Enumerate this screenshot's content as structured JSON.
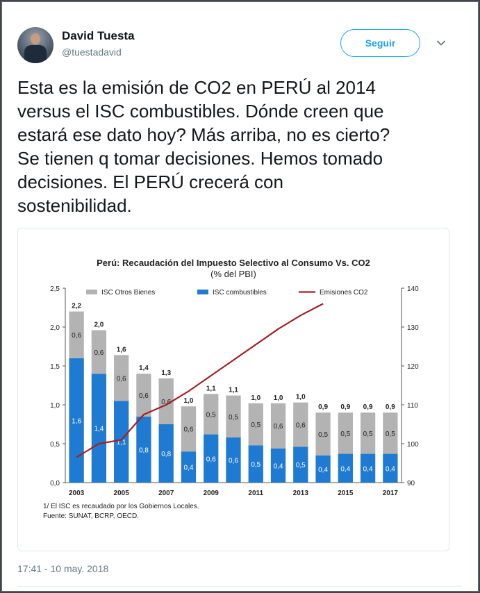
{
  "user": {
    "name": "David Tuesta",
    "handle": "@tuestadavid",
    "follow_label": "Seguir"
  },
  "icons": {
    "avatar": "user-avatar-photo",
    "menu": "chevron-down-icon"
  },
  "tweet": {
    "lines": [
      "Esta es la emisión de CO2 en PERÚ al 2014",
      "versus el ISC combustibles. Dónde creen que",
      "estará ese dato hoy? Más arriba, no es cierto?",
      "Se tienen q tomar decisiones. Hemos tomado",
      "decisiones. El PERÚ crecerá con",
      "sostenibilidad."
    ],
    "timestamp": "17:41 - 10 may. 2018"
  },
  "colors": {
    "accent": "#1da1f2",
    "isc_otros": "#b3b3b3",
    "isc_combustibles": "#1f7bd2",
    "co2_line": "#a31f24"
  },
  "chart_data": {
    "type": "bar",
    "title": "Perú: Recaudación del Impuesto Selectivo al Consumo Vs. CO2",
    "subtitle": "(% del PBI)",
    "categories": [
      "2003",
      "2004",
      "2005",
      "2006",
      "2007",
      "2008",
      "2009",
      "2010",
      "2011",
      "2012",
      "2013",
      "2014",
      "2015",
      "2016",
      "2017"
    ],
    "x_tick_labels": [
      "2003",
      "2005",
      "2007",
      "2009",
      "2011",
      "2013",
      "2015",
      "2017"
    ],
    "stacked": true,
    "series": [
      {
        "name": "ISC combustibles",
        "axis": "left",
        "values": [
          1.6,
          1.4,
          1.05,
          0.85,
          0.75,
          0.4,
          0.62,
          0.58,
          0.48,
          0.44,
          0.46,
          0.35,
          0.37,
          0.37,
          0.37
        ],
        "labels": [
          "1,6",
          "1,4",
          "1,1",
          "0,8",
          "0,8",
          "0,4",
          "0,6",
          "0,6",
          "0,5",
          "0,4",
          "0,5",
          "0,4",
          "0,4",
          "0,4",
          "0,4"
        ]
      },
      {
        "name": "ISC Otros Bienes",
        "axis": "left",
        "values": [
          0.6,
          0.56,
          0.59,
          0.55,
          0.59,
          0.58,
          0.52,
          0.54,
          0.54,
          0.58,
          0.57,
          0.55,
          0.53,
          0.53,
          0.53
        ],
        "labels": [
          "0,6",
          "0,6",
          "0,6",
          "0,6",
          "0,6",
          "0,6",
          "0,5",
          "0,5",
          "0,5",
          "0,6",
          "0,6",
          "0,5",
          "0,5",
          "0,5",
          "0,5"
        ]
      },
      {
        "name": "Emisiones CO2",
        "axis": "right",
        "type": "line",
        "x": [
          "2003",
          "2004",
          "2005",
          "2006",
          "2007",
          "2008",
          "2009",
          "2010",
          "2011",
          "2012",
          "2013",
          "2014"
        ],
        "values": [
          96.5,
          100,
          101,
          107.5,
          110,
          113.5,
          117.5,
          121.5,
          125.5,
          129.5,
          133,
          136
        ]
      }
    ],
    "totals": [
      "2,2",
      "2,0",
      "1,6",
      "1,4",
      "1,3",
      "1,0",
      "1,1",
      "1,1",
      "1,0",
      "1,0",
      "1,0",
      "0,9",
      "0,9",
      "0,9",
      "0,9"
    ],
    "total_values": [
      2.2,
      1.96,
      1.64,
      1.4,
      1.34,
      0.98,
      1.14,
      1.12,
      1.02,
      1.02,
      1.03,
      0.9,
      0.9,
      0.9,
      0.9
    ],
    "y_left": {
      "ylim": [
        0,
        2.5
      ],
      "ticks": [
        "0,0",
        "0,5",
        "1,0",
        "1,5",
        "2,0",
        "2,5"
      ],
      "tick_values": [
        0,
        0.5,
        1.0,
        1.5,
        2.0,
        2.5
      ]
    },
    "y_right": {
      "ylim": [
        90,
        140
      ],
      "ticks": [
        "90",
        "100",
        "110",
        "120",
        "130",
        "140"
      ],
      "tick_values": [
        90,
        100,
        110,
        120,
        130,
        140
      ]
    },
    "legend": [
      "ISC Otros Bienes",
      "ISC combustibles",
      "Emisiones CO2"
    ],
    "legend_position": "top",
    "footnotes": [
      "1/ El ISC es recaudado por los Gobiernos Locales.",
      "Fuente: SUNAT, BCRP, OECD."
    ]
  }
}
